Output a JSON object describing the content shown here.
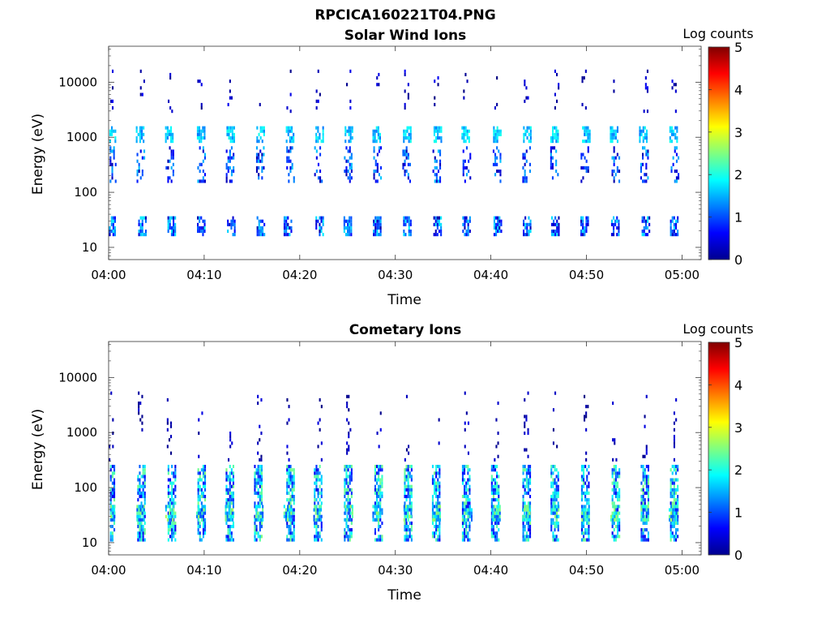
{
  "figure": {
    "file_title": "RPCICA160221T04.PNG"
  },
  "panels": [
    {
      "title": "Solar Wind Ions",
      "xlabel": "Time",
      "ylabel": "Energy (eV)",
      "colorbar_label": "Log counts"
    },
    {
      "title": "Cometary Ions",
      "xlabel": "Time",
      "ylabel": "Energy (eV)",
      "colorbar_label": "Log counts"
    }
  ],
  "chart_data": [
    {
      "type": "heatmap",
      "title": "Solar Wind Ions",
      "xlabel": "Time",
      "ylabel": "Energy (eV)",
      "x_ticks": [
        "04:00",
        "04:10",
        "04:20",
        "04:30",
        "04:40",
        "04:50",
        "05:00"
      ],
      "x_range_minutes_after_0400": [
        0,
        62
      ],
      "y_scale": "log",
      "y_ticks": [
        10,
        100,
        1000,
        10000
      ],
      "y_range_eV": [
        6,
        45000
      ],
      "colorbar": {
        "label": "Log counts",
        "ticks": [
          0,
          1,
          2,
          3,
          4,
          5
        ],
        "range": [
          0,
          5
        ],
        "colormap": "jet"
      },
      "sweep_period_minutes": 3.1,
      "features": [
        {
          "energy_eV": [
            900,
            1400
          ],
          "log_counts": [
            1.2,
            2.0
          ],
          "note": "main solar wind beam, repeated each sweep"
        },
        {
          "energy_eV": [
            150,
            600
          ],
          "log_counts": [
            0.2,
            1.6
          ],
          "note": "secondary band"
        },
        {
          "energy_eV": [
            18,
            35
          ],
          "log_counts": [
            0.2,
            1.8
          ],
          "note": "low energy band"
        },
        {
          "energy_eV": [
            3000,
            15000
          ],
          "log_counts": [
            0.0,
            0.6
          ],
          "note": "sparse high energy counts"
        }
      ]
    },
    {
      "type": "heatmap",
      "title": "Cometary Ions",
      "xlabel": "Time",
      "ylabel": "Energy (eV)",
      "x_ticks": [
        "04:00",
        "04:10",
        "04:20",
        "04:30",
        "04:40",
        "04:50",
        "05:00"
      ],
      "x_range_minutes_after_0400": [
        0,
        62
      ],
      "y_scale": "log",
      "y_ticks": [
        10,
        100,
        1000,
        10000
      ],
      "y_range_eV": [
        6,
        45000
      ],
      "colorbar": {
        "label": "Log counts",
        "ticks": [
          0,
          1,
          2,
          3,
          4,
          5
        ],
        "range": [
          0,
          5
        ],
        "colormap": "jet"
      },
      "sweep_period_minutes": 3.1,
      "features": [
        {
          "energy_eV": [
            12,
            250
          ],
          "log_counts": [
            0.5,
            2.5
          ],
          "note": "main cometary ion columns, repeated each sweep"
        },
        {
          "energy_eV": [
            25,
            45
          ],
          "log_counts": [
            1.0,
            2.7
          ],
          "note": "brightest band"
        },
        {
          "energy_eV": [
            300,
            5000
          ],
          "log_counts": [
            0.0,
            0.5
          ],
          "note": "sparse counts"
        }
      ]
    }
  ]
}
